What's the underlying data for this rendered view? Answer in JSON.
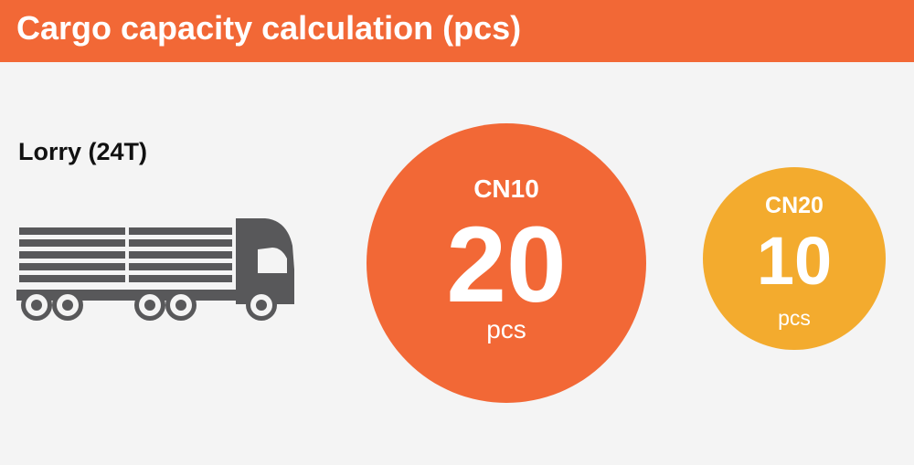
{
  "header": {
    "title": "Cargo capacity calculation (pcs)"
  },
  "vehicle": {
    "name": "Lorry (24T)",
    "icon": "truck-icon"
  },
  "capacities": [
    {
      "name": "CN10",
      "value": "20",
      "unit": "pcs",
      "color": "#f26836"
    },
    {
      "name": "CN20",
      "value": "10",
      "unit": "pcs",
      "color": "#f3ab2e"
    }
  ],
  "colors": {
    "accent": "#f26836",
    "secondary": "#f3ab2e",
    "truck": "#58585a",
    "background": "#f4f4f4"
  }
}
